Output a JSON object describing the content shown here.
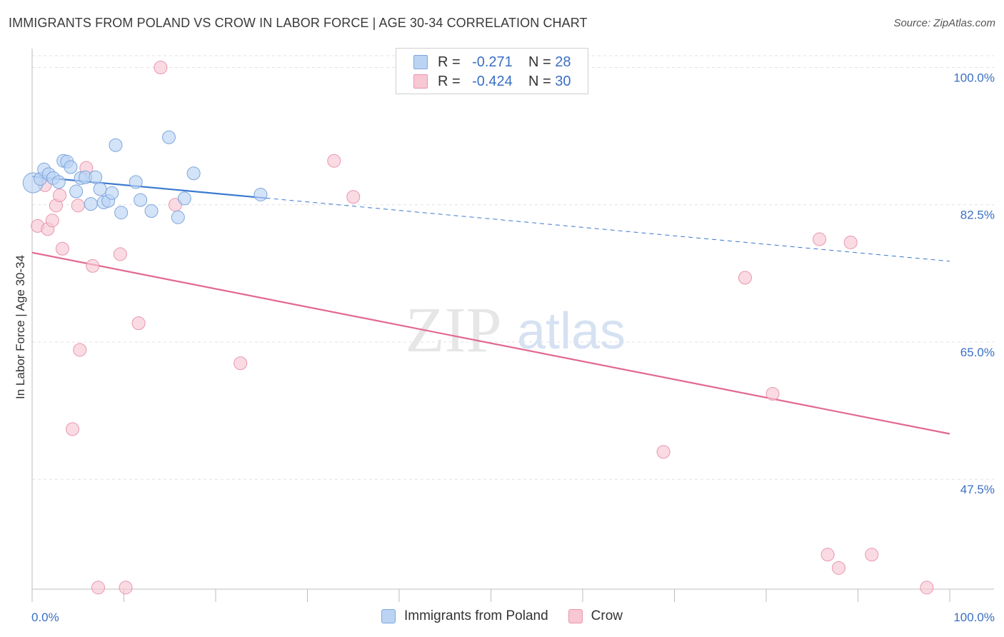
{
  "title": "IMMIGRANTS FROM POLAND VS CROW IN LABOR FORCE | AGE 30-34 CORRELATION CHART",
  "source": "Source: ZipAtlas.com",
  "watermark": {
    "zip": "ZIP",
    "atlas": "atlas"
  },
  "legend": {
    "r_label": "R =",
    "n_label": "N =",
    "series1": {
      "r": "-0.271",
      "n": "28"
    },
    "series2": {
      "r": "-0.424",
      "n": "30"
    }
  },
  "colors": {
    "series1_fill": "#bcd4f4",
    "series1_stroke": "#7ea6dc",
    "series1_line": "#3a78d0",
    "series2_fill": "#f8c7d4",
    "series2_stroke": "#ea95ae",
    "series2_line": "#e2688f",
    "tick_label": "#3a6fc4"
  },
  "chart_data": {
    "type": "scatter",
    "title": "IMMIGRANTS FROM POLAND VS CROW IN LABOR FORCE | AGE 30-34 CORRELATION CHART",
    "xlabel": "",
    "ylabel": "In Labor Force | Age 30-34",
    "xlim": [
      0,
      100
    ],
    "ylim": [
      33.5,
      101.5
    ],
    "x_tick_labels": [
      "0.0%",
      "100.0%"
    ],
    "y_ticks": [
      47.5,
      65.0,
      82.5,
      100.0
    ],
    "y_tick_labels": [
      "47.5%",
      "65.0%",
      "82.5%",
      "100.0%"
    ],
    "grid": true,
    "legend_position": "top-center",
    "series": [
      {
        "name": "Immigrants from Poland",
        "r": -0.271,
        "n": 28,
        "trend": {
          "x0": 0,
          "y0": 86.1,
          "x1": 100,
          "y1": 75.3,
          "solid_until": 25.5
        },
        "points": [
          {
            "x": 0.1,
            "y": 85.3
          },
          {
            "x": 0.9,
            "y": 85.8
          },
          {
            "x": 1.3,
            "y": 87.0
          },
          {
            "x": 1.8,
            "y": 86.4
          },
          {
            "x": 2.3,
            "y": 85.9
          },
          {
            "x": 2.9,
            "y": 85.4
          },
          {
            "x": 3.4,
            "y": 88.1
          },
          {
            "x": 3.8,
            "y": 88.0
          },
          {
            "x": 4.2,
            "y": 87.3
          },
          {
            "x": 4.8,
            "y": 84.2
          },
          {
            "x": 5.3,
            "y": 85.9
          },
          {
            "x": 5.8,
            "y": 86.0
          },
          {
            "x": 6.4,
            "y": 82.6
          },
          {
            "x": 6.9,
            "y": 86.0
          },
          {
            "x": 7.4,
            "y": 84.5
          },
          {
            "x": 7.8,
            "y": 82.8
          },
          {
            "x": 8.3,
            "y": 83.0
          },
          {
            "x": 8.7,
            "y": 84.0
          },
          {
            "x": 9.1,
            "y": 90.1
          },
          {
            "x": 9.7,
            "y": 81.5
          },
          {
            "x": 11.3,
            "y": 85.4
          },
          {
            "x": 11.8,
            "y": 83.1
          },
          {
            "x": 13.0,
            "y": 81.7
          },
          {
            "x": 14.9,
            "y": 91.1
          },
          {
            "x": 15.9,
            "y": 80.9
          },
          {
            "x": 16.6,
            "y": 83.3
          },
          {
            "x": 17.6,
            "y": 86.5
          },
          {
            "x": 24.9,
            "y": 83.8
          }
        ]
      },
      {
        "name": "Crow",
        "r": -0.424,
        "n": 30,
        "trend": {
          "x0": 0,
          "y0": 76.4,
          "x1": 100,
          "y1": 53.3
        },
        "points": [
          {
            "x": 0.6,
            "y": 79.8
          },
          {
            "x": 1.4,
            "y": 85.0
          },
          {
            "x": 1.7,
            "y": 79.4
          },
          {
            "x": 2.2,
            "y": 80.5
          },
          {
            "x": 2.6,
            "y": 82.4
          },
          {
            "x": 3.0,
            "y": 83.7
          },
          {
            "x": 3.3,
            "y": 76.9
          },
          {
            "x": 4.4,
            "y": 53.9
          },
          {
            "x": 5.0,
            "y": 82.4
          },
          {
            "x": 5.2,
            "y": 64.0
          },
          {
            "x": 5.9,
            "y": 87.2
          },
          {
            "x": 6.6,
            "y": 74.7
          },
          {
            "x": 7.2,
            "y": 33.7
          },
          {
            "x": 9.6,
            "y": 76.2
          },
          {
            "x": 10.2,
            "y": 33.7
          },
          {
            "x": 11.6,
            "y": 67.4
          },
          {
            "x": 14.0,
            "y": 100.0
          },
          {
            "x": 15.6,
            "y": 82.5
          },
          {
            "x": 22.7,
            "y": 62.3
          },
          {
            "x": 32.9,
            "y": 88.1
          },
          {
            "x": 35.0,
            "y": 83.5
          },
          {
            "x": 68.8,
            "y": 51.0
          },
          {
            "x": 77.7,
            "y": 73.2
          },
          {
            "x": 80.7,
            "y": 58.4
          },
          {
            "x": 85.8,
            "y": 78.1
          },
          {
            "x": 86.7,
            "y": 37.9
          },
          {
            "x": 87.9,
            "y": 36.2
          },
          {
            "x": 89.2,
            "y": 77.7
          },
          {
            "x": 91.5,
            "y": 37.9
          },
          {
            "x": 97.5,
            "y": 33.7
          }
        ]
      }
    ]
  }
}
